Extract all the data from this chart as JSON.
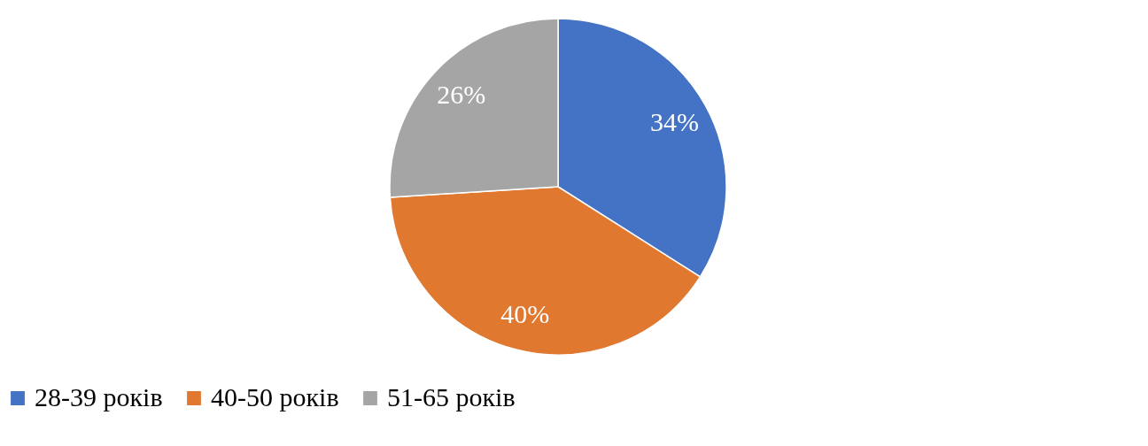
{
  "chart_data": {
    "type": "pie",
    "categories": [
      "28-39 років",
      "40-50 років",
      "51-65 років"
    ],
    "values": [
      34,
      40,
      26
    ],
    "colors": [
      "#4472c4",
      "#e07830",
      "#a5a5a5"
    ],
    "value_labels": [
      "34%",
      "40%",
      "26%"
    ],
    "legend": "bottom"
  }
}
